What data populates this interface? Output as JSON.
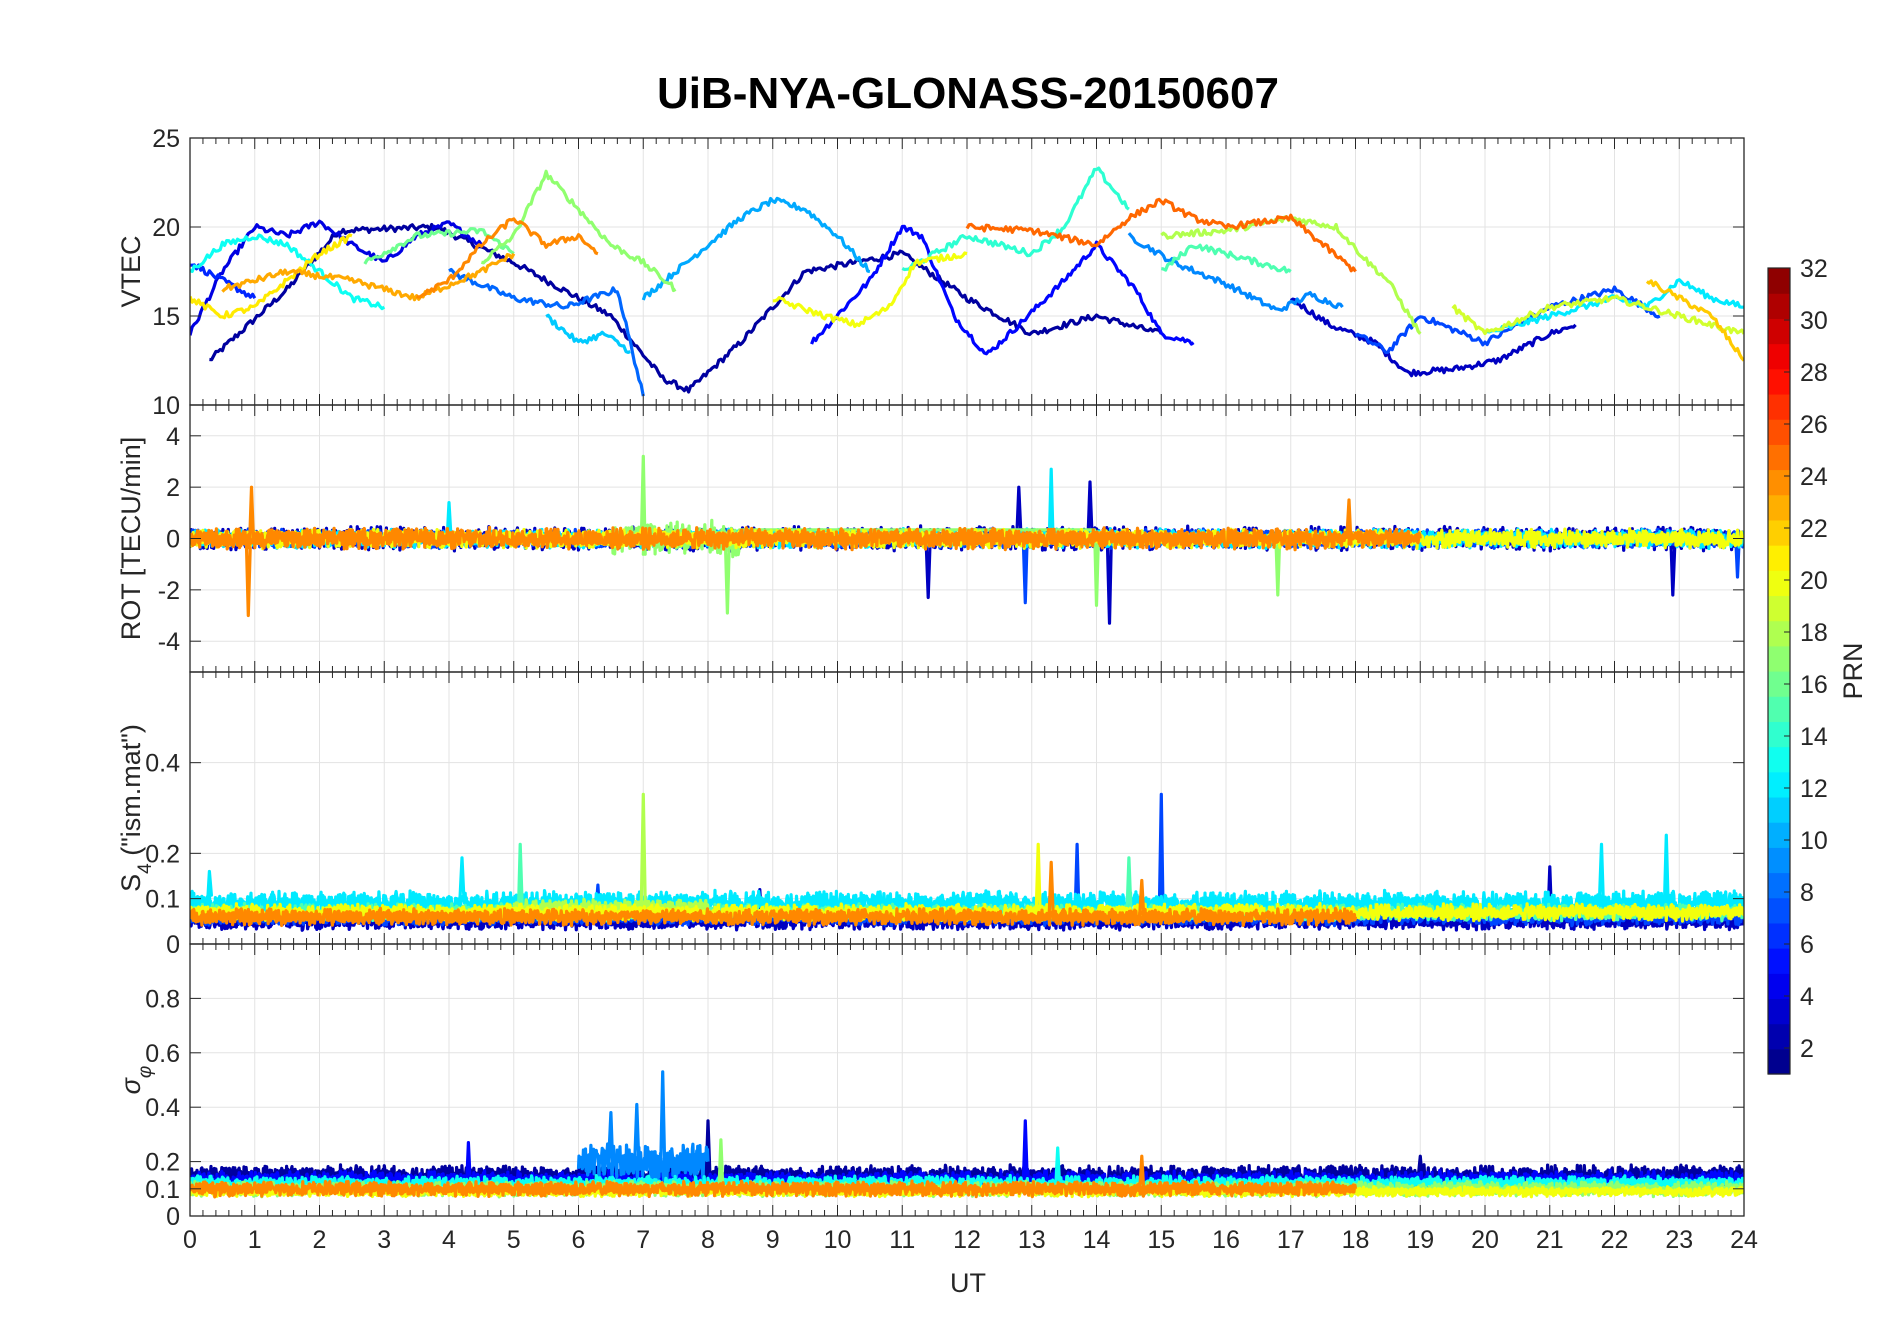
{
  "chart_data": {
    "type": "line",
    "title": "UiB-NYA-GLONASS-20150607",
    "xlabel": "UT",
    "xlim": [
      0,
      24
    ],
    "xticks": [
      "0",
      "1",
      "2",
      "3",
      "4",
      "5",
      "6",
      "7",
      "8",
      "9",
      "10",
      "11",
      "12",
      "13",
      "14",
      "15",
      "16",
      "17",
      "18",
      "19",
      "20",
      "21",
      "22",
      "23",
      "24"
    ],
    "grid": true,
    "colorbar": {
      "label": "PRN",
      "colormap": "jet",
      "range": [
        1,
        32
      ],
      "ticks": [
        "2",
        "4",
        "6",
        "8",
        "10",
        "12",
        "14",
        "16",
        "18",
        "20",
        "22",
        "24",
        "26",
        "28",
        "30",
        "32"
      ]
    },
    "panels": [
      {
        "id": "vtec",
        "ylabel": "VTEC",
        "ylim": [
          10,
          25
        ],
        "yticks": [
          "10",
          "15",
          "20",
          "25"
        ],
        "ytick_values": [
          10,
          15,
          20,
          25
        ],
        "series": [
          {
            "prn": 2,
            "x": [
              0.3,
              1.5,
              2.3,
              3.8,
              5.0,
              6.5,
              7.3,
              7.7,
              8.5,
              9.5,
              11.0,
              12.0,
              13.0,
              14.0,
              15.0
            ],
            "y": [
              12.5,
              16.5,
              19.8,
              20.0,
              18.0,
              15.0,
              11.5,
              10.8,
              13.5,
              17.5,
              18.5,
              16.0,
              14.0,
              15.0,
              14.0
            ]
          },
          {
            "prn": 3,
            "x": [
              17.0,
              17.6,
              18.3,
              18.8,
              19.5,
              20.2,
              21.0,
              21.4
            ],
            "y": [
              16.0,
              14.5,
              13.5,
              11.8,
              12.0,
              12.5,
              14.0,
              14.5
            ]
          },
          {
            "prn": 4,
            "x": [
              0.0,
              0.5,
              1.0,
              1.5,
              2.0,
              2.5,
              3.0,
              3.5,
              4.0,
              4.5
            ],
            "y": [
              14.0,
              17.5,
              20.0,
              19.5,
              20.3,
              19.0,
              18.0,
              19.5,
              20.2,
              19.0
            ]
          },
          {
            "prn": 5,
            "x": [
              9.6,
              10.5,
              11.0,
              11.3,
              11.8,
              12.3,
              12.8,
              13.5,
              14.0,
              14.6,
              15.0,
              15.5
            ],
            "y": [
              13.5,
              17.0,
              20.0,
              19.5,
              15.0,
              12.8,
              14.5,
              17.0,
              19.0,
              16.5,
              14.0,
              13.5
            ]
          },
          {
            "prn": 6,
            "x": [
              0.0,
              0.5,
              1.0
            ],
            "y": [
              18.0,
              17.0,
              16.0
            ]
          },
          {
            "prn": 7,
            "x": [
              18.0,
              18.5,
              19.0,
              20.0,
              21.0,
              22.0,
              22.7
            ],
            "y": [
              14.0,
              13.0,
              15.0,
              13.5,
              15.5,
              16.5,
              15.0
            ]
          },
          {
            "prn": 8,
            "x": [
              4.0,
              5.0,
              5.8,
              6.6,
              7.0
            ],
            "y": [
              17.5,
              16.0,
              15.5,
              16.5,
              10.5
            ]
          },
          {
            "prn": 9,
            "x": [
              14.5,
              15.2,
              16.0,
              16.8,
              17.3,
              17.8
            ],
            "y": [
              19.5,
              18.0,
              16.8,
              15.3,
              16.2,
              15.5
            ]
          },
          {
            "prn": 10,
            "x": [
              7.0,
              7.5,
              8.0,
              8.5,
              9.0,
              9.5,
              10.0,
              10.5
            ],
            "y": [
              16.0,
              17.5,
              19.0,
              20.5,
              21.5,
              21.0,
              19.5,
              17.5
            ]
          },
          {
            "prn": 11,
            "x": [
              5.5,
              6.0,
              6.4,
              6.8
            ],
            "y": [
              15.0,
              13.5,
              14.0,
              13.0
            ]
          },
          {
            "prn": 12,
            "x": [
              20.0,
              21.0,
              22.0,
              22.5,
              23.0,
              23.5,
              24.0
            ],
            "y": [
              14.0,
              15.0,
              16.0,
              15.5,
              17.0,
              16.0,
              15.5
            ]
          },
          {
            "prn": 13,
            "x": [
              0.0,
              0.5,
              1.0,
              1.5,
              2.0,
              2.5,
              3.0
            ],
            "y": [
              17.5,
              19.0,
              19.5,
              19.0,
              17.5,
              16.0,
              15.5
            ]
          },
          {
            "prn": 14,
            "x": [
              11.0,
              12.0,
              13.0,
              13.5,
              14.0,
              14.5
            ],
            "y": [
              17.5,
              19.5,
              18.5,
              20.0,
              23.3,
              21.0
            ]
          },
          {
            "prn": 15,
            "x": [
              15.0,
              15.5,
              16.0,
              16.5,
              17.0
            ],
            "y": [
              17.5,
              19.0,
              18.5,
              18.0,
              17.5
            ]
          },
          {
            "prn": 16,
            "x": [
              2.7,
              3.5,
              4.5,
              5.0
            ],
            "y": [
              18.0,
              19.5,
              19.8,
              18.5
            ]
          },
          {
            "prn": 17,
            "x": [
              4.5,
              5.0,
              5.5,
              6.0,
              6.5,
              7.0,
              7.5
            ],
            "y": [
              18.0,
              19.5,
              23.0,
              21.0,
              19.0,
              18.0,
              16.5
            ]
          },
          {
            "prn": 18,
            "x": [
              15.0,
              16.0,
              17.0,
              17.7,
              18.2,
              18.5,
              19.0
            ],
            "y": [
              19.5,
              19.8,
              20.5,
              20.0,
              18.0,
              17.0,
              14.0
            ]
          },
          {
            "prn": 19,
            "x": [
              19.5,
              20.0,
              21.0,
              22.0,
              23.0,
              24.0
            ],
            "y": [
              15.5,
              14.0,
              15.5,
              16.0,
              15.0,
              14.0
            ]
          },
          {
            "prn": 20,
            "x": [
              9.0,
              9.8,
              10.3,
              10.8,
              11.2,
              12.0
            ],
            "y": [
              16.0,
              15.0,
              14.5,
              15.5,
              18.0,
              18.5
            ]
          },
          {
            "prn": 21,
            "x": [
              0.0,
              0.5,
              1.0,
              1.5,
              2.0,
              2.5
            ],
            "y": [
              16.0,
              15.0,
              15.5,
              17.0,
              18.5,
              19.5
            ]
          },
          {
            "prn": 22,
            "x": [
              22.5,
              23.0,
              23.5,
              24.0
            ],
            "y": [
              17.0,
              16.0,
              15.0,
              12.5
            ]
          },
          {
            "prn": 23,
            "x": [
              0.5,
              1.5,
              2.5,
              3.5,
              4.5,
              5.0
            ],
            "y": [
              16.5,
              17.5,
              17.0,
              16.0,
              17.5,
              18.5
            ]
          },
          {
            "prn": 24,
            "x": [
              3.5,
              4.0,
              4.5,
              5.0,
              5.5,
              6.0,
              6.3
            ],
            "y": [
              16.0,
              17.0,
              19.0,
              20.5,
              19.0,
              19.5,
              18.5
            ]
          },
          {
            "prn": 25,
            "x": [
              12.0,
              13.0,
              14.0,
              14.5,
              15.0,
              15.5,
              16.0,
              17.0,
              17.5,
              18.0
            ],
            "y": [
              20.0,
              19.8,
              19.0,
              20.5,
              21.5,
              20.5,
              20.0,
              20.5,
              19.0,
              17.5
            ]
          }
        ]
      },
      {
        "id": "rot",
        "ylabel": "ROT [TECU/min]",
        "ylim": [
          -5.2,
          5.2
        ],
        "yticks": [
          "-4",
          "-2",
          "0",
          "2",
          "4"
        ],
        "ytick_values": [
          -4,
          -2,
          0,
          2,
          4
        ],
        "series": [
          {
            "prn": 3,
            "x": [
              0.0,
              24.0
            ],
            "y": [
              0.0,
              0.0
            ],
            "amplitude": 0.5,
            "spikes": [
              [
                11.4,
                -2.3
              ],
              [
                12.8,
                2.0
              ],
              [
                13.9,
                2.2
              ],
              [
                14.2,
                -3.3
              ],
              [
                22.9,
                -2.2
              ]
            ]
          },
          {
            "prn": 7,
            "x": [
              0.0,
              24.0
            ],
            "y": [
              0.0,
              0.0
            ],
            "amplitude": 0.4,
            "spikes": [
              [
                12.9,
                -2.5
              ],
              [
                23.9,
                -1.5
              ]
            ]
          },
          {
            "prn": 12,
            "x": [
              0.0,
              24.0
            ],
            "y": [
              0.0,
              0.0
            ],
            "amplitude": 0.4,
            "spikes": [
              [
                13.3,
                2.7
              ],
              [
                4.0,
                1.4
              ]
            ]
          },
          {
            "prn": 17,
            "x": [
              6.5,
              8.5
            ],
            "y": [
              0.0,
              0.0
            ],
            "amplitude": 0.8,
            "spikes": [
              [
                7.0,
                3.2
              ],
              [
                8.3,
                -2.9
              ],
              [
                14.0,
                -2.6
              ],
              [
                16.8,
                -2.2
              ]
            ]
          },
          {
            "prn": 20,
            "x": [
              0.0,
              24.0
            ],
            "y": [
              0.0,
              0.0
            ],
            "amplitude": 0.4,
            "spikes": []
          },
          {
            "prn": 24,
            "x": [
              0.0,
              19.0
            ],
            "y": [
              0.0,
              0.0
            ],
            "amplitude": 0.45,
            "spikes": [
              [
                0.9,
                -3.0
              ],
              [
                0.95,
                2.0
              ],
              [
                17.9,
                1.5
              ]
            ]
          }
        ]
      },
      {
        "id": "s4",
        "ylabel": "S4 (\"ism.mat\")",
        "ylabel_main": "S",
        "ylabel_sub": "4",
        "ylabel_rest": " (\"ism.mat\")",
        "ylim": [
          0,
          0.6
        ],
        "yticks": [
          "0",
          "0.1",
          "0.2",
          "0.4"
        ],
        "ytick_values": [
          0,
          0.1,
          0.2,
          0.4
        ],
        "series": [
          {
            "prn": 3,
            "x": [
              0.0,
              24.0
            ],
            "y": [
              0.05,
              0.05
            ],
            "amplitude": 0.02,
            "spikes": [
              [
                21.0,
                0.17
              ],
              [
                8.8,
                0.12
              ]
            ]
          },
          {
            "prn": 7,
            "x": [
              0.0,
              24.0
            ],
            "y": [
              0.06,
              0.06
            ],
            "amplitude": 0.02,
            "spikes": [
              [
                15.0,
                0.33
              ],
              [
                13.7,
                0.22
              ],
              [
                6.3,
                0.13
              ]
            ]
          },
          {
            "prn": 12,
            "x": [
              0.0,
              24.0
            ],
            "y": [
              0.09,
              0.09
            ],
            "amplitude": 0.03,
            "spikes": [
              [
                0.3,
                0.16
              ],
              [
                22.8,
                0.24
              ],
              [
                21.8,
                0.22
              ],
              [
                4.2,
                0.19
              ]
            ]
          },
          {
            "prn": 15,
            "x": [
              0.0,
              24.0
            ],
            "y": [
              0.07,
              0.07
            ],
            "amplitude": 0.02,
            "spikes": [
              [
                5.1,
                0.22
              ],
              [
                14.5,
                0.19
              ]
            ]
          },
          {
            "prn": 18,
            "x": [
              5.0,
              8.0
            ],
            "y": [
              0.08,
              0.08
            ],
            "amplitude": 0.02,
            "spikes": [
              [
                7.0,
                0.33
              ]
            ]
          },
          {
            "prn": 20,
            "x": [
              0.0,
              24.0
            ],
            "y": [
              0.07,
              0.07
            ],
            "amplitude": 0.02,
            "spikes": [
              [
                13.1,
                0.22
              ]
            ]
          },
          {
            "prn": 24,
            "x": [
              0.0,
              18.0
            ],
            "y": [
              0.06,
              0.06
            ],
            "amplitude": 0.02,
            "spikes": [
              [
                14.7,
                0.14
              ],
              [
                13.3,
                0.18
              ]
            ]
          }
        ]
      },
      {
        "id": "sigma_phi",
        "ylabel": "σφ",
        "ylim": [
          0,
          1.0
        ],
        "yticks": [
          "0",
          "0.1",
          "0.2",
          "0.4",
          "0.6",
          "0.8"
        ],
        "ytick_values": [
          0,
          0.1,
          0.2,
          0.4,
          0.6,
          0.8
        ],
        "series": [
          {
            "prn": 2,
            "x": [
              0.0,
              24.0
            ],
            "y": [
              0.15,
              0.15
            ],
            "amplitude": 0.04,
            "spikes": [
              [
                8.0,
                0.35
              ],
              [
                19.0,
                0.22
              ]
            ]
          },
          {
            "prn": 5,
            "x": [
              0.0,
              24.0
            ],
            "y": [
              0.13,
              0.13
            ],
            "amplitude": 0.04,
            "spikes": [
              [
                12.9,
                0.35
              ],
              [
                4.3,
                0.27
              ]
            ]
          },
          {
            "prn": 9,
            "x": [
              6.0,
              8.0
            ],
            "y": [
              0.2,
              0.2
            ],
            "amplitude": 0.08,
            "spikes": [
              [
                7.3,
                0.53
              ],
              [
                6.9,
                0.41
              ],
              [
                6.5,
                0.38
              ]
            ]
          },
          {
            "prn": 13,
            "x": [
              0.0,
              24.0
            ],
            "y": [
              0.12,
              0.12
            ],
            "amplitude": 0.03,
            "spikes": [
              [
                13.4,
                0.25
              ]
            ]
          },
          {
            "prn": 17,
            "x": [
              0.0,
              24.0
            ],
            "y": [
              0.1,
              0.1
            ],
            "amplitude": 0.03,
            "spikes": [
              [
                8.2,
                0.28
              ]
            ]
          },
          {
            "prn": 20,
            "x": [
              0.0,
              24.0
            ],
            "y": [
              0.09,
              0.09
            ],
            "amplitude": 0.02,
            "spikes": []
          },
          {
            "prn": 24,
            "x": [
              0.0,
              18.0
            ],
            "y": [
              0.1,
              0.1
            ],
            "amplitude": 0.03,
            "spikes": [
              [
                14.7,
                0.22
              ]
            ]
          }
        ]
      }
    ]
  }
}
